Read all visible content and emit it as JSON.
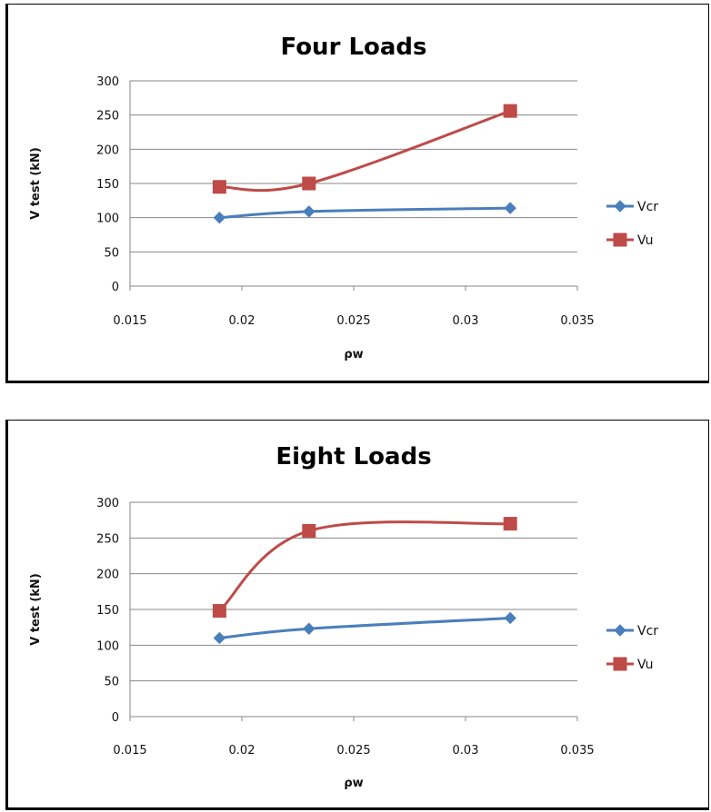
{
  "chart_data": [
    {
      "type": "line",
      "title": "Four Loads",
      "xlabel": "ρw",
      "ylabel": "V test (kN)",
      "xlim": [
        0.015,
        0.035
      ],
      "ylim": [
        0,
        300
      ],
      "x_ticks": [
        "0.015",
        "0.02",
        "0.025",
        "0.03",
        "0.035"
      ],
      "y_ticks": [
        "0",
        "50",
        "100",
        "150",
        "200",
        "250",
        "300"
      ],
      "grid": true,
      "legend": "right",
      "series": [
        {
          "name": "Vcr",
          "color": "#4a7ebb",
          "marker": "diamond",
          "x": [
            0.019,
            0.023,
            0.032
          ],
          "y": [
            100,
            109,
            114
          ]
        },
        {
          "name": "Vu",
          "color": "#be4b48",
          "marker": "square",
          "x": [
            0.019,
            0.023,
            0.032
          ],
          "y": [
            145,
            150,
            256
          ]
        }
      ]
    },
    {
      "type": "line",
      "title": "Eight Loads",
      "xlabel": "ρw",
      "ylabel": "V test (kN)",
      "xlim": [
        0.015,
        0.035
      ],
      "ylim": [
        0,
        300
      ],
      "x_ticks": [
        "0.015",
        "0.02",
        "0.025",
        "0.03",
        "0.035"
      ],
      "y_ticks": [
        "0",
        "50",
        "100",
        "150",
        "200",
        "250",
        "300"
      ],
      "grid": true,
      "legend": "right",
      "series": [
        {
          "name": "Vcr",
          "color": "#4a7ebb",
          "marker": "diamond",
          "x": [
            0.019,
            0.023,
            0.032
          ],
          "y": [
            110,
            123,
            138
          ]
        },
        {
          "name": "Vu",
          "color": "#be4b48",
          "marker": "square",
          "x": [
            0.019,
            0.023,
            0.032
          ],
          "y": [
            148,
            260,
            270
          ]
        }
      ]
    }
  ]
}
